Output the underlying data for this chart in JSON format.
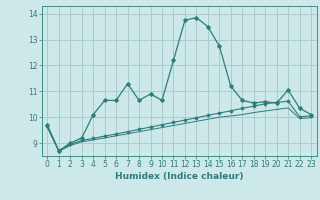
{
  "xlabel": "Humidex (Indice chaleur)",
  "bg_color": "#cce8e8",
  "grid_color": "#aacccc",
  "line_color": "#2d7d7d",
  "xlim": [
    -0.5,
    23.5
  ],
  "ylim": [
    8.5,
    14.3
  ],
  "x": [
    0,
    1,
    2,
    3,
    4,
    5,
    6,
    7,
    8,
    9,
    10,
    11,
    12,
    13,
    14,
    15,
    16,
    17,
    18,
    19,
    20,
    21,
    22,
    23
  ],
  "line1": [
    9.7,
    8.7,
    9.0,
    9.2,
    10.1,
    10.65,
    10.65,
    11.3,
    10.65,
    10.9,
    10.65,
    12.2,
    13.75,
    13.85,
    13.5,
    12.75,
    11.2,
    10.65,
    10.55,
    10.6,
    10.55,
    11.05,
    10.35,
    10.1
  ],
  "line2": [
    9.65,
    8.7,
    8.95,
    9.1,
    9.18,
    9.27,
    9.35,
    9.44,
    9.53,
    9.62,
    9.71,
    9.8,
    9.89,
    9.98,
    10.07,
    10.16,
    10.25,
    10.34,
    10.43,
    10.52,
    10.57,
    10.62,
    10.02,
    10.05
  ],
  "line3": [
    9.6,
    8.68,
    8.9,
    9.05,
    9.12,
    9.2,
    9.28,
    9.36,
    9.44,
    9.52,
    9.6,
    9.68,
    9.76,
    9.84,
    9.92,
    10.0,
    10.05,
    10.1,
    10.18,
    10.24,
    10.3,
    10.36,
    9.95,
    9.98
  ]
}
